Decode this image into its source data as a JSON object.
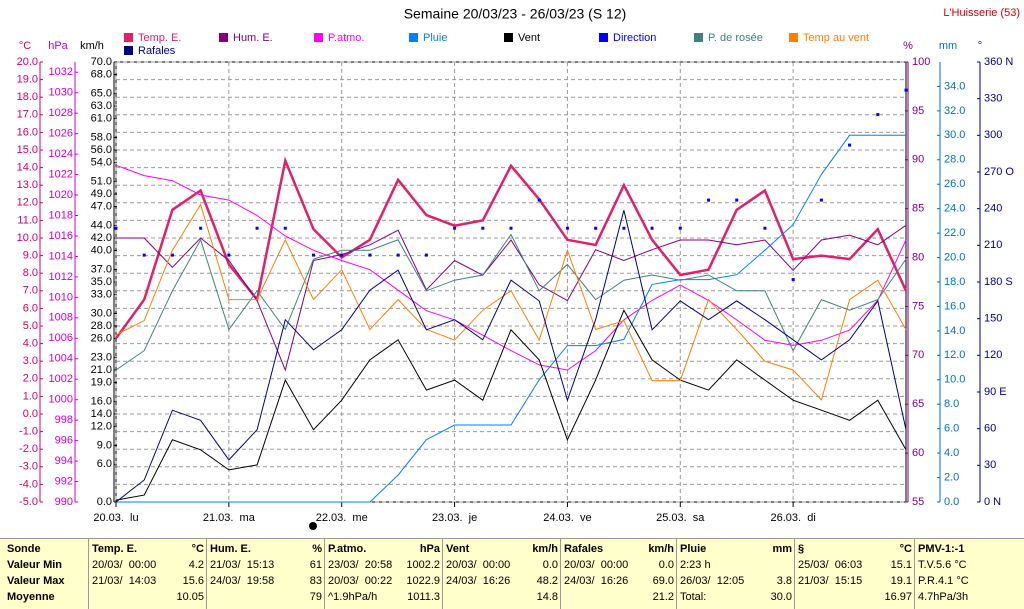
{
  "chart_data": {
    "type": "line",
    "title": "Semaine 20/03/23 - 26/03/23 (S 12)",
    "station": "L'Huisserie (53)",
    "x": [
      0,
      6,
      12,
      18,
      24,
      30,
      36,
      42,
      48,
      54,
      60,
      66,
      72,
      78,
      84,
      90,
      96,
      102,
      108,
      114,
      120,
      126,
      132,
      138,
      144,
      150,
      156,
      162,
      168
    ],
    "xlim": [
      0,
      168
    ],
    "xticks": [
      {
        "value": 0,
        "label": "20.03.  lu"
      },
      {
        "value": 24,
        "label": "21.03.  ma"
      },
      {
        "value": 48,
        "label": "22.03.  me"
      },
      {
        "value": 72,
        "label": "23.03.  je"
      },
      {
        "value": 96,
        "label": "24.03.  ve"
      },
      {
        "value": 120,
        "label": "25.03.  sa"
      },
      {
        "value": 144,
        "label": "26.03.  di"
      }
    ],
    "grid": true,
    "axes": {
      "temp": {
        "label": "°C",
        "color": "#d0006a",
        "lim": [
          -5,
          20
        ],
        "ticks": [
          {
            "value": -5,
            "label": "-5.0"
          },
          {
            "value": -4,
            "label": "-4.0"
          },
          {
            "value": -3,
            "label": "-3.0"
          },
          {
            "value": -2,
            "label": "-2.0"
          },
          {
            "value": -1,
            "label": "-1.0"
          },
          {
            "value": 0,
            "label": "0.0"
          },
          {
            "value": 1,
            "label": "1.0"
          },
          {
            "value": 2,
            "label": "2.0"
          },
          {
            "value": 3,
            "label": "3.0"
          },
          {
            "value": 4,
            "label": "4.0"
          },
          {
            "value": 5,
            "label": "5.0"
          },
          {
            "value": 6,
            "label": "6.0"
          },
          {
            "value": 7,
            "label": "7.0"
          },
          {
            "value": 8,
            "label": "8.0"
          },
          {
            "value": 9,
            "label": "9.0"
          },
          {
            "value": 10,
            "label": "10.0"
          },
          {
            "value": 11,
            "label": "11.0"
          },
          {
            "value": 12,
            "label": "12.0"
          },
          {
            "value": 13,
            "label": "13.0"
          },
          {
            "value": 14,
            "label": "14.0"
          },
          {
            "value": 15,
            "label": "15.0"
          },
          {
            "value": 16,
            "label": "16.0"
          },
          {
            "value": 17,
            "label": "17.0"
          },
          {
            "value": 18,
            "label": "18.0"
          },
          {
            "value": 19,
            "label": "19.0"
          },
          {
            "value": 20,
            "label": "20.0"
          }
        ]
      },
      "hpa": {
        "label": "hPa",
        "color": "#cc00cc",
        "lim": [
          990,
          1033
        ],
        "ticks": [
          990,
          992,
          994,
          996,
          998,
          1000,
          1002,
          1004,
          1006,
          1008,
          1010,
          1012,
          1014,
          1016,
          1018,
          1020,
          1022,
          1024,
          1026,
          1028,
          1030,
          1032
        ]
      },
      "kmh": {
        "label": "km/h",
        "color": "#000000",
        "lim": [
          0,
          70
        ],
        "ticks": [
          {
            "value": 0,
            "label": "0.0"
          },
          {
            "value": 6,
            "label": "6.0"
          },
          {
            "value": 9,
            "label": "9.0"
          },
          {
            "value": 12,
            "label": "12.0"
          },
          {
            "value": 14,
            "label": "14.0"
          },
          {
            "value": 16,
            "label": "16.0"
          },
          {
            "value": 19,
            "label": "19.0"
          },
          {
            "value": 21,
            "label": "21.0"
          },
          {
            "value": 23,
            "label": "23.0"
          },
          {
            "value": 26,
            "label": "26.0"
          },
          {
            "value": 28,
            "label": "28.0"
          },
          {
            "value": 30,
            "label": "30.0"
          },
          {
            "value": 33,
            "label": "33.0"
          },
          {
            "value": 35,
            "label": "35.0"
          },
          {
            "value": 37,
            "label": "37.0"
          },
          {
            "value": 40,
            "label": "40.0"
          },
          {
            "value": 42,
            "label": "42.0"
          },
          {
            "value": 44,
            "label": "44.0"
          },
          {
            "value": 47,
            "label": "47.0"
          },
          {
            "value": 49,
            "label": "49.0"
          },
          {
            "value": 51,
            "label": "51.0"
          },
          {
            "value": 54,
            "label": "54.0"
          },
          {
            "value": 56,
            "label": "56.0"
          },
          {
            "value": 58,
            "label": "58.0"
          },
          {
            "value": 61,
            "label": "61.0"
          },
          {
            "value": 63,
            "label": "63.0"
          },
          {
            "value": 65,
            "label": "65.0"
          },
          {
            "value": 68,
            "label": "68.0"
          },
          {
            "value": 70,
            "label": "70.0"
          }
        ]
      },
      "pct": {
        "label": "%",
        "color": "#800080",
        "lim": [
          55,
          100
        ],
        "ticks": [
          55,
          60,
          65,
          70,
          75,
          80,
          85,
          90,
          95,
          100
        ]
      },
      "mm": {
        "label": "mm",
        "color": "#0070c0",
        "lim": [
          0,
          36
        ],
        "ticks": [
          {
            "value": 0,
            "label": "0.0"
          },
          {
            "value": 2,
            "label": "2.0"
          },
          {
            "value": 4,
            "label": "4.0"
          },
          {
            "value": 6,
            "label": "6.0"
          },
          {
            "value": 8,
            "label": "8.0"
          },
          {
            "value": 10,
            "label": "10.0"
          },
          {
            "value": 12,
            "label": "12.0"
          },
          {
            "value": 14,
            "label": "14.0"
          },
          {
            "value": 16,
            "label": "16.0"
          },
          {
            "value": 18,
            "label": "18.0"
          },
          {
            "value": 20,
            "label": "20.0"
          },
          {
            "value": 22,
            "label": "22.0"
          },
          {
            "value": 24,
            "label": "24.0"
          },
          {
            "value": 26,
            "label": "26.0"
          },
          {
            "value": 28,
            "label": "28.0"
          },
          {
            "value": 30,
            "label": "30.0"
          },
          {
            "value": 32,
            "label": "32.0"
          },
          {
            "value": 34,
            "label": "34.0"
          }
        ]
      },
      "deg": {
        "label": "°",
        "color": "#000080",
        "lim": [
          0,
          360
        ],
        "ticks": [
          {
            "value": 0,
            "label": "0  N"
          },
          {
            "value": 30,
            "label": "30"
          },
          {
            "value": 60,
            "label": "60"
          },
          {
            "value": 90,
            "label": "90  E"
          },
          {
            "value": 120,
            "label": "120"
          },
          {
            "value": 150,
            "label": "150"
          },
          {
            "value": 180,
            "label": "180  S"
          },
          {
            "value": 210,
            "label": "210"
          },
          {
            "value": 240,
            "label": "240"
          },
          {
            "value": 270,
            "label": "270  O"
          },
          {
            "value": 300,
            "label": "300"
          },
          {
            "value": 330,
            "label": "330"
          },
          {
            "value": 360,
            "label": "360  N"
          }
        ]
      }
    },
    "series": [
      {
        "name": "Temp. E.",
        "color": "#e0206a",
        "axis": "temp",
        "width": 2.5,
        "values": [
          4.3,
          6.5,
          11.6,
          12.7,
          8.5,
          6.5,
          14.4,
          10.5,
          8.9,
          9.9,
          13.3,
          11.3,
          10.7,
          11,
          14.1,
          12.2,
          9.9,
          9.6,
          13,
          9.9,
          7.9,
          8.2,
          11.6,
          12.7,
          8.8,
          9,
          8.8,
          10.5,
          7
        ]
      },
      {
        "name": "Hum. E.",
        "color": "#800080",
        "axis": "pct",
        "values": [
          82,
          82,
          79,
          82,
          79.7,
          75.6,
          68.5,
          79.7,
          80.3,
          81.3,
          82.8,
          76.7,
          79.7,
          78.2,
          81.8,
          77.2,
          75.6,
          80.8,
          79.7,
          80.8,
          81.8,
          81.8,
          81.3,
          81.8,
          78.7,
          81.8,
          82.3,
          81.3,
          83.3
        ]
      },
      {
        "name": "P.atmo.",
        "color": "#ff00ff",
        "axis": "hpa",
        "values": [
          1022.9,
          1021.9,
          1021.4,
          1020,
          1019.5,
          1018,
          1016,
          1014.6,
          1013.6,
          1012.7,
          1010.7,
          1008.7,
          1007.8,
          1006.3,
          1004.8,
          1003.4,
          1002.9,
          1004.8,
          1007.8,
          1009.7,
          1011.2,
          1009.7,
          1007.8,
          1005.8,
          1005.3,
          1005.8,
          1006.8,
          1009.7,
          1015.6
        ]
      },
      {
        "name": "Pluie",
        "color": "#0080ff",
        "axis": "mm",
        "values": [
          0,
          0,
          0,
          0,
          0,
          0,
          0,
          0,
          0,
          0,
          2.2,
          5.1,
          6.3,
          6.3,
          6.3,
          10,
          12.8,
          12.8,
          13.3,
          17.8,
          18.2,
          18.2,
          18.6,
          20.6,
          22.7,
          26.8,
          30,
          30,
          30
        ]
      },
      {
        "name": "Vent",
        "color": "#000000",
        "axis": "kmh",
        "values": [
          0.3,
          1.1,
          9.9,
          8.3,
          5.1,
          5.9,
          19.4,
          11.5,
          16.2,
          22.6,
          25.8,
          17.8,
          19.4,
          16.2,
          27.4,
          22.6,
          9.9,
          19.4,
          30.5,
          22.6,
          19.4,
          17.8,
          22.6,
          19.4,
          16.2,
          14.6,
          13,
          16.2,
          8.3
        ]
      },
      {
        "name": "Direction",
        "color": "#0000ff",
        "axis": "deg",
        "marker": "dots",
        "values": [
          224,
          202,
          202,
          224,
          202,
          224,
          224,
          202,
          202,
          202,
          202,
          202,
          224,
          224,
          224,
          247,
          224,
          224,
          224,
          224,
          224,
          247,
          247,
          224,
          182,
          247,
          292,
          317,
          337
        ]
      },
      {
        "name": "P. de rosée",
        "color": "#408080",
        "axis": "temp",
        "values": [
          2.5,
          3.6,
          7,
          9.9,
          4.8,
          7,
          4.8,
          8.8,
          9.3,
          9.3,
          9.9,
          7,
          7.6,
          7.9,
          10.2,
          7,
          8.5,
          6.5,
          7.6,
          7.9,
          7.6,
          7.9,
          7,
          7,
          3.6,
          6.5,
          5.9,
          6.5,
          8.8
        ]
      },
      {
        "name": "Temp au vent",
        "color": "#ff8000",
        "axis": "temp",
        "values": [
          4.5,
          5.3,
          9.3,
          11.9,
          6.5,
          6.5,
          9.9,
          6.5,
          8.2,
          4.8,
          6.5,
          4.8,
          4.2,
          5.9,
          7,
          4.2,
          9.3,
          4.8,
          5.3,
          1.9,
          1.9,
          6.5,
          4.8,
          3,
          2.5,
          0.8,
          6.5,
          7.6,
          4.8
        ]
      },
      {
        "name": "Rafales",
        "color": "#000080",
        "axis": "kmh",
        "values": [
          0,
          3.5,
          14.6,
          13,
          6.7,
          11.5,
          29,
          24.2,
          27.4,
          33.7,
          36.9,
          27.4,
          29,
          25.8,
          35.3,
          32,
          16.2,
          29,
          46.4,
          27.4,
          32,
          29,
          32,
          29,
          25.8,
          22.6,
          25.8,
          32,
          11.5
        ]
      }
    ]
  },
  "table": {
    "row_labels": [
      "Sonde",
      "Valeur Min",
      "Valeur Max",
      "Moyenne"
    ],
    "groups": [
      {
        "title": "Temp. E.",
        "unit": "°C",
        "min": [
          "20/03/  00:00",
          "4.2"
        ],
        "max": [
          "21/03/  14:03",
          "15.6"
        ],
        "mean": [
          "10.05"
        ]
      },
      {
        "title": "Hum. E.",
        "unit": "%",
        "min": [
          "21/03/  15:13",
          "61"
        ],
        "max": [
          "24/03/  19:58",
          "83"
        ],
        "mean": [
          "79"
        ]
      },
      {
        "title": "P.atmo.",
        "unit": "hPa",
        "min": [
          "23/03/  20:58",
          "1002.2"
        ],
        "max": [
          "20/03/  00:22",
          "1022.9"
        ],
        "mean": [
          "^1.9hPa/h",
          "1011.3"
        ]
      },
      {
        "title": "Vent",
        "unit": "km/h",
        "min": [
          "20/03/  00:00",
          "0.0"
        ],
        "max": [
          "24/03/  16:26",
          "48.2"
        ],
        "mean": [
          "14.8"
        ]
      },
      {
        "title": "Rafales",
        "unit": "km/h",
        "min": [
          "20/03/  00:00",
          "0.0"
        ],
        "max": [
          "24/03/  16:26",
          "69.0"
        ],
        "mean": [
          "21.2"
        ]
      },
      {
        "title": "Pluie",
        "unit": "mm",
        "min": [
          "2:23 h"
        ],
        "max": [
          "26/03/  12:05",
          "3.8"
        ],
        "mean": [
          "Total:",
          "30.0"
        ]
      },
      {
        "title": "§",
        "unit": "°C",
        "min": [
          "25/03/  06:03",
          "15.1"
        ],
        "max": [
          "21/03/  15:15",
          "19.1"
        ],
        "mean": [
          "16.97"
        ]
      },
      {
        "title": "PMV-1:-1",
        "min": [
          "T.V.5.6 °C"
        ],
        "max": [
          "P.R.4.1 °C"
        ],
        "mean": [
          "4.7hPa/3h"
        ]
      }
    ]
  }
}
